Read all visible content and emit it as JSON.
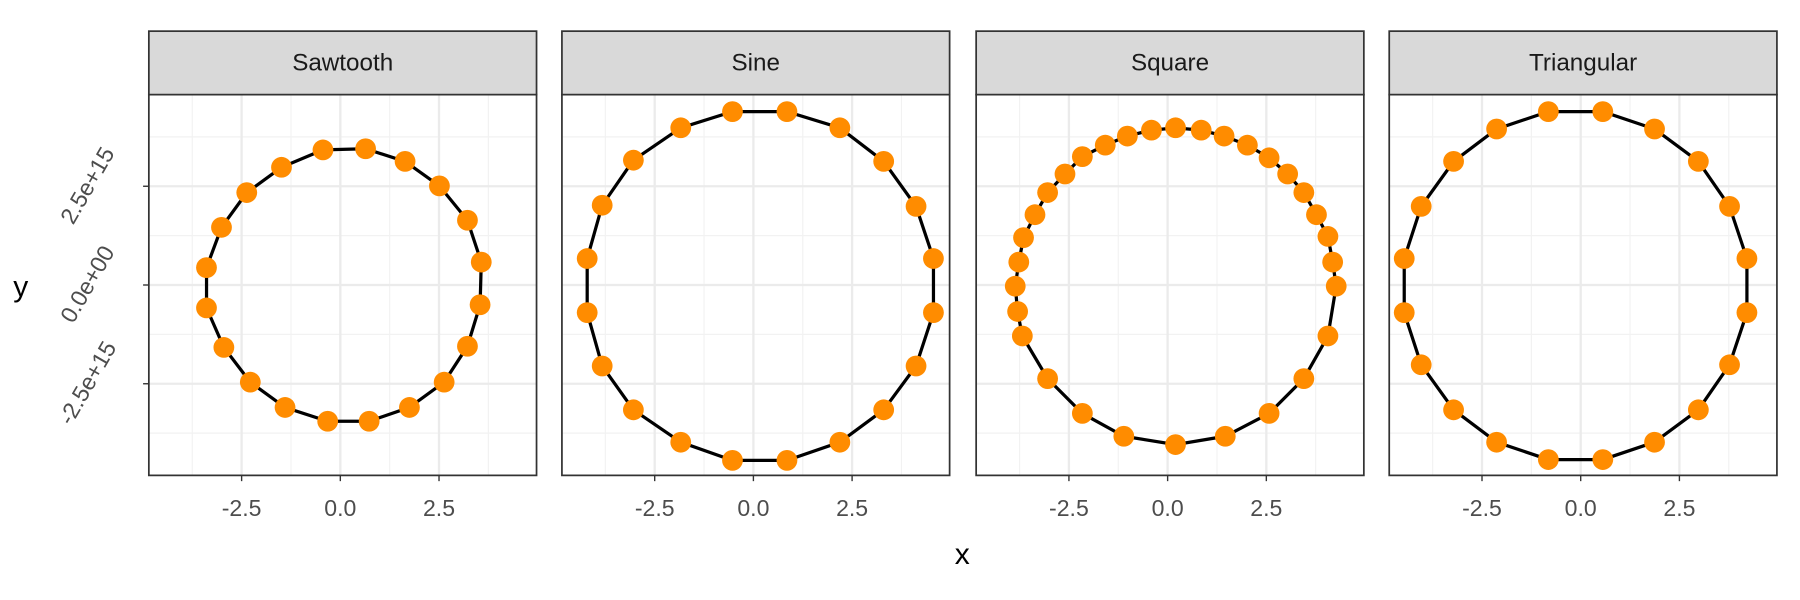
{
  "chart_data": {
    "type": "scatter",
    "xlabel": "x",
    "ylabel": "y",
    "xlim": [
      -4.85,
      4.97
    ],
    "ylim": [
      -4820000000000000.0,
      4820000000000000.0
    ],
    "xticks": [
      -2.5,
      {
        "value": 0,
        "label": "0.0"
      },
      2.5
    ],
    "yticks": [
      {
        "value": -2500000000000000.0,
        "label": "-2.5e+15"
      },
      {
        "value": 0,
        "label": "0.0e+00"
      },
      {
        "value": 2500000000000000.0,
        "label": "2.5e+15"
      }
    ],
    "grid": true,
    "point_color": "#ff8c00",
    "line_color": "#000000",
    "series": [
      {
        "name": "Sawtooth",
        "x": [
          -3.39,
          -3.01,
          -2.37,
          -1.49,
          -0.44,
          0.64,
          1.64,
          2.51,
          3.22,
          3.57,
          3.54,
          3.22,
          2.63,
          1.75,
          0.73,
          -0.32,
          -1.4,
          -2.28,
          -2.95,
          -3.39
        ],
        "values": [
          440000000000000.0,
          1460000000000000.0,
          2340000000000000.0,
          2980000000000000.0,
          3420000000000000.0,
          3450000000000000.0,
          3130000000000000.0,
          2510000000000000.0,
          1640000000000000.0,
          580000000000000.0,
          -500000000000000.0,
          -1550000000000000.0,
          -2460000000000000.0,
          -3100000000000000.0,
          -3450000000000000.0,
          -3450000000000000.0,
          -3100000000000000.0,
          -2460000000000000.0,
          -1580000000000000.0,
          -580000000000000.0
        ]
      },
      {
        "name": "Sine",
        "x": [
          -4.21,
          -3.83,
          -3.04,
          -1.84,
          -0.53,
          0.85,
          2.19,
          3.3,
          4.12,
          4.56,
          4.56,
          4.12,
          3.3,
          2.19,
          0.85,
          -0.53,
          -1.84,
          -3.04,
          -3.83,
          -4.21
        ],
        "values": [
          670000000000000.0,
          2020000000000000.0,
          3160000000000000.0,
          3980000000000000.0,
          4390000000000000.0,
          4390000000000000.0,
          3980000000000000.0,
          3130000000000000.0,
          1990000000000000.0,
          670000000000000.0,
          -700000000000000.0,
          -2050000000000000.0,
          -3160000000000000.0,
          -3980000000000000.0,
          -4440000000000000.0,
          -4440000000000000.0,
          -3980000000000000.0,
          -3160000000000000.0,
          -2050000000000000.0,
          -700000000000000.0
        ]
      },
      {
        "name": "Square",
        "x": [
          -3.86,
          -3.77,
          -3.65,
          -3.36,
          -3.04,
          -2.6,
          -2.16,
          -1.58,
          -1.02,
          -0.41,
          0.2,
          0.85,
          1.43,
          2.02,
          2.57,
          3.04,
          3.45,
          3.77,
          4.06,
          4.18,
          4.27,
          4.06,
          3.45,
          2.57,
          1.46,
          0.2,
          -1.11,
          -2.16,
          -3.04,
          -3.68,
          -3.8
        ],
        "values": [
          -30000000000000.0,
          580000000000000.0,
          1200000000000000.0,
          1780000000000000.0,
          2340000000000000.0,
          2810000000000000.0,
          3250000000000000.0,
          3540000000000000.0,
          3770000000000000.0,
          3920000000000000.0,
          3980000000000000.0,
          3920000000000000.0,
          3770000000000000.0,
          3540000000000000.0,
          3220000000000000.0,
          2810000000000000.0,
          2340000000000000.0,
          1780000000000000.0,
          1230000000000000.0,
          580000000000000.0,
          -30000000000000.0,
          -1290000000000000.0,
          -2370000000000000.0,
          -3250000000000000.0,
          -3830000000000000.0,
          -4040000000000000.0,
          -3830000000000000.0,
          -3250000000000000.0,
          -2370000000000000.0,
          -1290000000000000.0,
          -670000000000000.0
        ]
      },
      {
        "name": "Triangular",
        "x": [
          -4.47,
          -4.04,
          -3.22,
          -2.13,
          -0.82,
          0.56,
          1.87,
          2.98,
          3.77,
          4.21,
          4.21,
          3.77,
          2.98,
          1.87,
          0.56,
          -0.82,
          -2.13,
          -3.22,
          -4.04,
          -4.47
        ],
        "values": [
          670000000000000.0,
          1990000000000000.0,
          3130000000000000.0,
          3950000000000000.0,
          4390000000000000.0,
          4390000000000000.0,
          3950000000000000.0,
          3130000000000000.0,
          1990000000000000.0,
          670000000000000.0,
          -700000000000000.0,
          -2020000000000000.0,
          -3160000000000000.0,
          -3980000000000000.0,
          -4420000000000000.0,
          -4420000000000000.0,
          -3980000000000000.0,
          -3160000000000000.0,
          -2020000000000000.0,
          -700000000000000.0
        ]
      }
    ]
  }
}
